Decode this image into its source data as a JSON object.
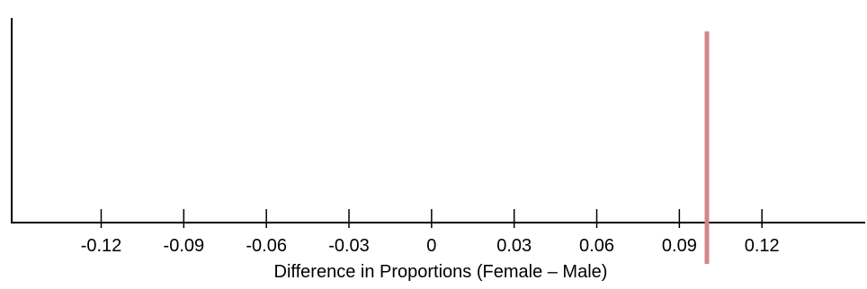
{
  "chart_data": {
    "type": "dotplot",
    "xlabel": "Difference in Proportions (Female – Male)",
    "ylabel": "",
    "xlim": [
      -0.1525,
      0.1575
    ],
    "x_ticks": [
      -0.12,
      -0.09,
      -0.06,
      -0.03,
      0,
      0.03,
      0.06,
      0.09,
      0.12
    ],
    "x_tick_labels": [
      "-0.12",
      "-0.09",
      "-0.06",
      "-0.03",
      "0",
      "0.03",
      "0.06",
      "0.09",
      "0.12"
    ],
    "points": [],
    "reference_line": {
      "x": 0.1,
      "color": "#d4868c"
    },
    "grid": false
  }
}
